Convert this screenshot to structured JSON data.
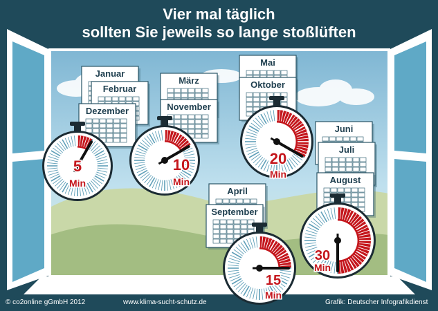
{
  "title": {
    "line1": "Vier mal täglich",
    "line2": "sollten Sie jeweils so lange stoßlüften"
  },
  "groups": [
    {
      "months": [
        "Januar",
        "Februar",
        "Dezember"
      ],
      "minutes": "5",
      "unit": "Min",
      "fraction": 0.0833
    },
    {
      "months": [
        "März",
        "November"
      ],
      "minutes": "10",
      "unit": "Min",
      "fraction": 0.1667
    },
    {
      "months": [
        "Mai",
        "Oktober"
      ],
      "minutes": "20",
      "unit": "Min",
      "fraction": 0.3333
    },
    {
      "months": [
        "April",
        "September"
      ],
      "minutes": "15",
      "unit": "Min",
      "fraction": 0.25
    },
    {
      "months": [
        "Juni",
        "Juli",
        "August"
      ],
      "minutes": "30",
      "unit": "Min",
      "fraction": 0.5
    }
  ],
  "footer": {
    "copyright": "© co2online gGmbH 2012",
    "url": "www.klima-sucht-schutz.de",
    "credit": "Grafik: Deutscher Infografikdienst"
  },
  "colors": {
    "frame": "#1f4a5a",
    "sky": "#a9d2e6",
    "hill": "#a9c08b",
    "accent": "#c4161c",
    "dial": "#ffffff"
  }
}
